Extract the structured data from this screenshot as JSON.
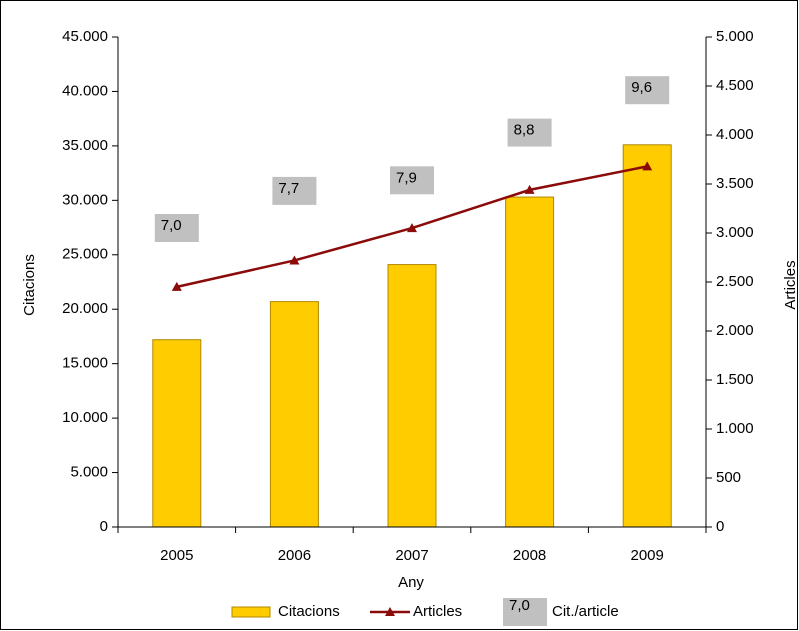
{
  "chart_data": {
    "type": "bar",
    "categories": [
      "2005",
      "2006",
      "2007",
      "2008",
      "2009"
    ],
    "x_label": "Any",
    "y_label": "Citacions",
    "y2_label": "Articles",
    "series": [
      {
        "name": "Citacions",
        "type": "bar",
        "color": "#ffcc00",
        "values": [
          17200,
          20700,
          24100,
          30300,
          35100
        ]
      },
      {
        "name": "Articles",
        "type": "line",
        "axis": "y2",
        "color": "#8b0a0a",
        "values": [
          2450,
          2720,
          3050,
          3440,
          3680
        ]
      },
      {
        "name": "Cit./article",
        "type": "label",
        "color": "#c0c0c0",
        "values": [
          7.0,
          7.7,
          7.9,
          8.8,
          9.6
        ],
        "value_labels": [
          "7,0",
          "7,7",
          "7,9",
          "8,8",
          "9,6"
        ]
      }
    ],
    "ylim": [
      0,
      45000
    ],
    "yticks": [
      0,
      {
        "value": 5000,
        "label": "5.000"
      },
      {
        "value": 10000,
        "label": "10.000"
      },
      {
        "value": 15000,
        "label": "15.000"
      },
      {
        "value": 20000,
        "label": "20.000"
      },
      {
        "value": 25000,
        "label": "25.000"
      },
      {
        "value": 30000,
        "label": "30.000"
      },
      {
        "value": 35000,
        "label": "35.000"
      },
      {
        "value": 40000,
        "label": "40.000"
      },
      {
        "value": 45000,
        "label": "45.000"
      }
    ],
    "y2lim": [
      0,
      5000
    ],
    "y2ticks": [
      0,
      500,
      {
        "value": 1000,
        "label": "1.000"
      },
      {
        "value": 1500,
        "label": "1.500"
      },
      {
        "value": 2000,
        "label": "2.000"
      },
      {
        "value": 2500,
        "label": "2.500"
      },
      {
        "value": 3000,
        "label": "3.000"
      },
      {
        "value": 3500,
        "label": "3.500"
      },
      {
        "value": 4000,
        "label": "4.000"
      },
      {
        "value": 4500,
        "label": "4.500"
      },
      {
        "value": 5000,
        "label": "5.000"
      }
    ],
    "grid": false,
    "legend": "bottom"
  }
}
